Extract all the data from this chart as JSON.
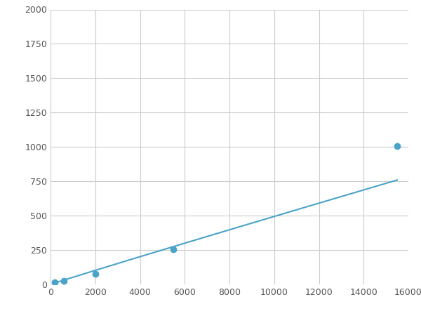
{
  "x": [
    200,
    600,
    2000,
    5500,
    15500
  ],
  "y": [
    15,
    25,
    75,
    255,
    1005
  ],
  "line_color": "#4aa3c8",
  "marker_color": "#4aa3c8",
  "marker_size": 6,
  "marker_style": "o",
  "xlim": [
    0,
    16000
  ],
  "ylim": [
    0,
    2000
  ],
  "xticks": [
    0,
    2000,
    4000,
    6000,
    8000,
    10000,
    12000,
    14000,
    16000
  ],
  "yticks": [
    0,
    250,
    500,
    750,
    1000,
    1250,
    1500,
    1750,
    2000
  ],
  "grid": true,
  "background_color": "#ffffff",
  "figsize": [
    6.0,
    4.5
  ],
  "dpi": 100
}
